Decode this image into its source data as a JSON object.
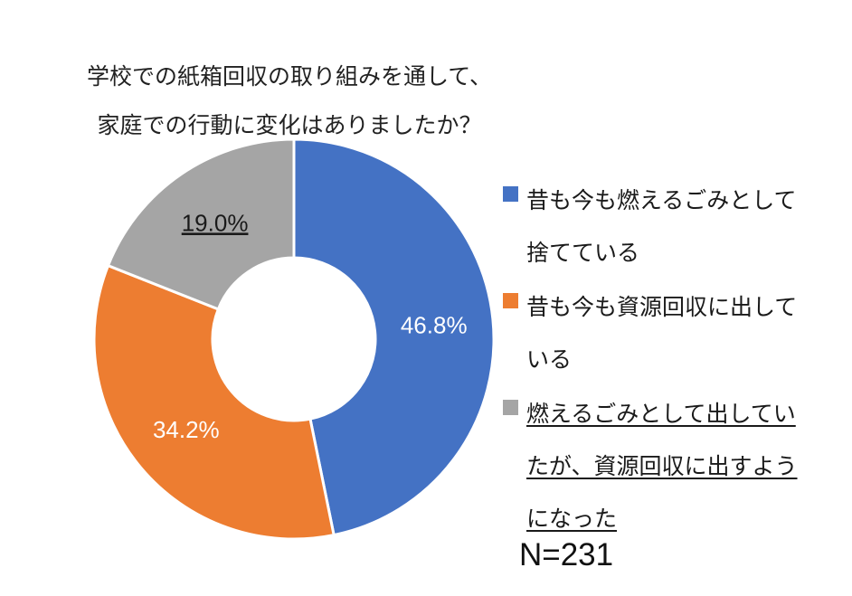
{
  "title_lines": [
    "学校での紙箱回収の取り組みを通して、",
    "家庭での行動に変化はありましたか？"
  ],
  "sample_size_label": "N=231",
  "chart_data": {
    "type": "pie",
    "donut": true,
    "categories": [
      "昔も今も燃えるごみとして捨てている",
      "昔も今も資源回収に出している",
      "燃えるごみとして出していたが、資源回収に出すようになった"
    ],
    "values": [
      46.8,
      34.2,
      19.0
    ],
    "labels": [
      "46.8%",
      "34.2%",
      "19.0%"
    ],
    "colors": [
      "#4472C4",
      "#ED7D31",
      "#A5A5A5"
    ],
    "label_colors": [
      "#ffffff",
      "#ffffff",
      "#1a1a1a"
    ],
    "underlined": [
      false,
      false,
      true
    ],
    "legend_placement": "right",
    "start": "top",
    "direction": "clockwise"
  }
}
